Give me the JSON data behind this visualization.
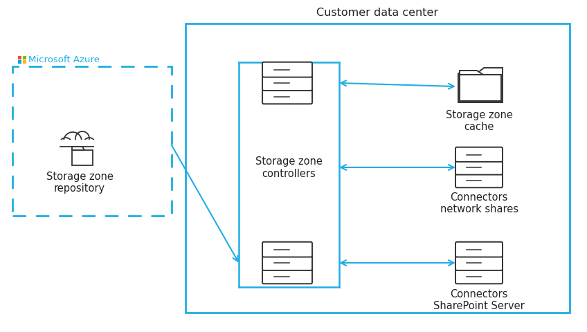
{
  "title": "Customer data center",
  "azure_label": "Microsoft Azure",
  "bg_color": "#ffffff",
  "cyan": "#1EAEE4",
  "dark": "#222222",
  "server_color": "#333333",
  "labels": {
    "storage_zone_controllers": "Storage zone\ncontrollers",
    "storage_zone_cache": "Storage zone\ncache",
    "connectors_network": "Connectors\nnetwork shares",
    "connectors_sharepoint": "Connectors\nSharePoint Server",
    "storage_zone_repo": "Storage zone\nrepository"
  },
  "win_colors": [
    "#f25022",
    "#7fba00",
    "#00a4ef",
    "#ffb900"
  ]
}
